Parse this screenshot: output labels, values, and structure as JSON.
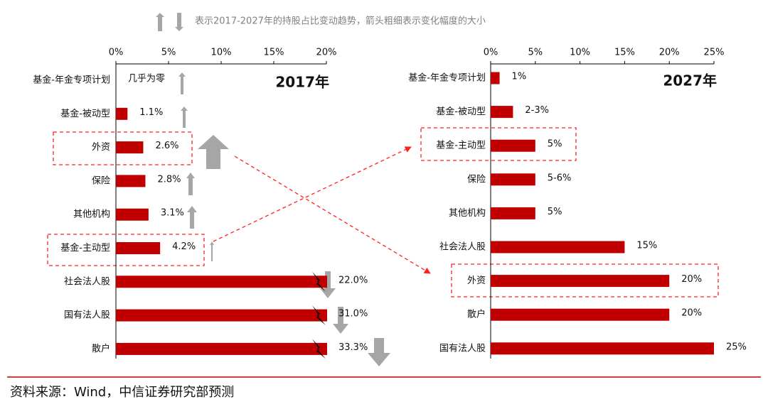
{
  "note": "表示2017-2027年的持股占比变动趋势，箭头粗细表示变化幅度的大小",
  "source": "资料来源：Wind，中信证券研究部预测",
  "chart_data": [
    {
      "type": "bar",
      "orientation": "horizontal",
      "title": "2017年",
      "color": "#c00000",
      "categories": [
        "基金-年金专项计划",
        "基金-被动型",
        "外资",
        "保险",
        "其他机构",
        "基金-主动型",
        "社会法人股",
        "国有法人股",
        "散户"
      ],
      "values": [
        0,
        1.1,
        2.6,
        2.8,
        3.1,
        4.2,
        22.0,
        31.0,
        33.3
      ],
      "value_labels": [
        "几乎为零",
        "1.1%",
        "2.6%",
        "2.8%",
        "3.1%",
        "4.2%",
        "22.0%",
        "31.0%",
        "33.3%"
      ],
      "xlim": [
        0,
        20
      ],
      "xticks": [
        {
          "value": 0,
          "label": "0%"
        },
        {
          "value": 5,
          "label": "5%"
        },
        {
          "value": 10,
          "label": "10%"
        },
        {
          "value": 15,
          "label": "15%"
        },
        {
          "value": 20,
          "label": "20%"
        }
      ]
    },
    {
      "type": "bar",
      "orientation": "horizontal",
      "title": "2027年",
      "color": "#c00000",
      "categories": [
        "基金-年金专项计划",
        "基金-被动型",
        "基金-主动型",
        "保险",
        "其他机构",
        "社会法人股",
        "外资",
        "散户",
        "国有法人股"
      ],
      "values": [
        1,
        2.5,
        5,
        5,
        5,
        15,
        20,
        20,
        25
      ],
      "value_labels": [
        "1%",
        "2-3%",
        "5%",
        "5-6%",
        "5%",
        "15%",
        "20%",
        "20%",
        "25%"
      ],
      "xlim": [
        0,
        25
      ],
      "xticks": [
        {
          "value": 0,
          "label": "0%"
        },
        {
          "value": 5,
          "label": "5%"
        },
        {
          "value": 10,
          "label": "10%"
        },
        {
          "value": 15,
          "label": "15%"
        },
        {
          "value": 20,
          "label": "20%"
        },
        {
          "value": 25,
          "label": "25%"
        }
      ]
    }
  ]
}
